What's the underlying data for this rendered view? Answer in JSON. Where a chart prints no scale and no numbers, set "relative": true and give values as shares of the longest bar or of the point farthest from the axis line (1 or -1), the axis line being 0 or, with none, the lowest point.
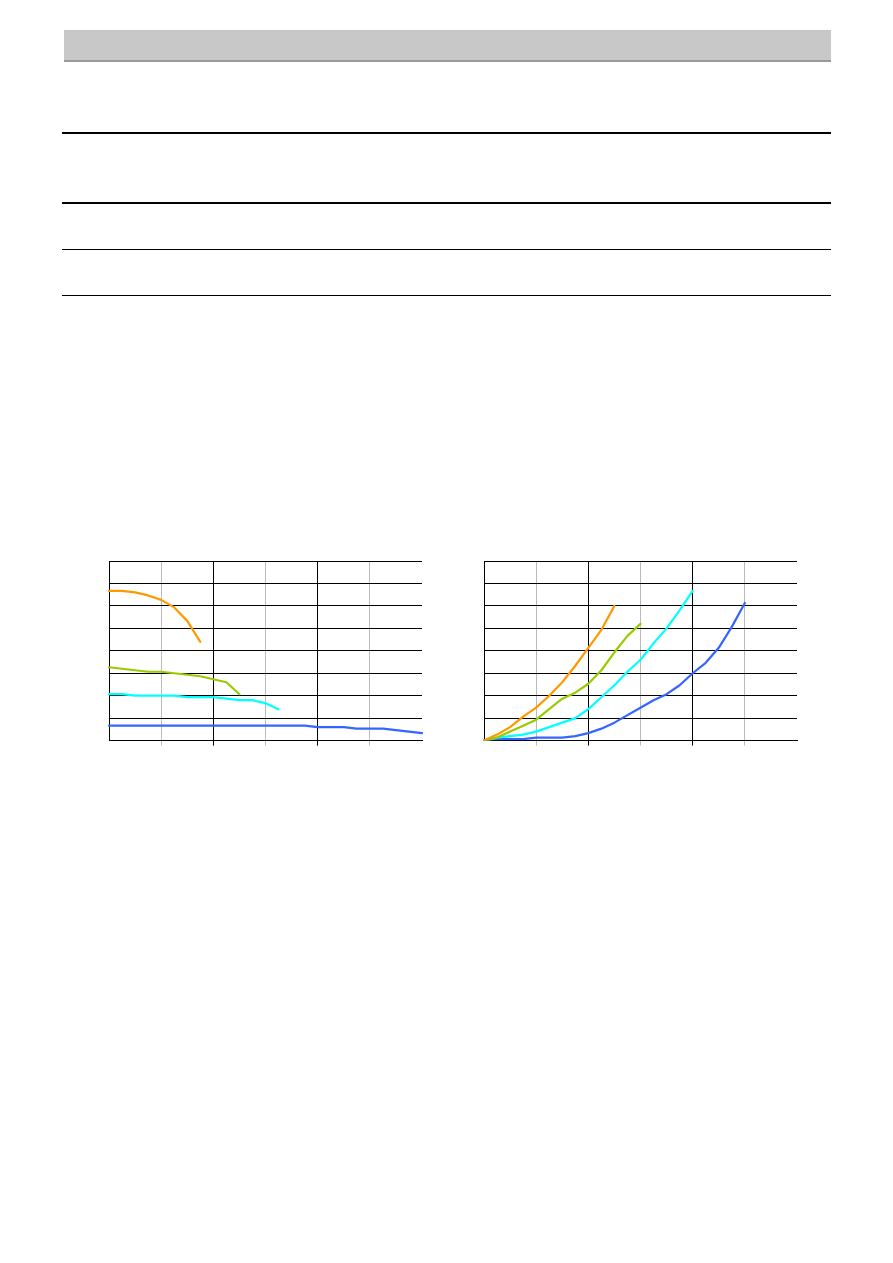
{
  "chart_data": [
    {
      "type": "line",
      "relative": true,
      "grid": true,
      "marker": "none",
      "line_style": "solid",
      "categories": [
        null,
        null,
        null,
        null,
        null,
        null,
        null,
        null,
        null,
        null,
        null,
        null,
        null,
        null,
        null,
        null,
        null,
        null,
        null,
        null,
        null,
        null,
        null,
        null,
        null
      ],
      "series": [
        {
          "color": "#ff9900",
          "values": [
            1,
            1,
            0.99,
            0.97,
            0.94,
            0.89,
            0.8,
            0.66,
            null,
            null,
            null,
            null,
            null,
            null,
            null,
            null,
            null,
            null,
            null,
            null,
            null,
            null,
            null,
            null,
            null
          ]
        },
        {
          "color": "#99cc00",
          "values": [
            0.49,
            0.48,
            0.47,
            0.46,
            0.46,
            0.45,
            0.44,
            0.43,
            0.41,
            0.39,
            0.31,
            null,
            null,
            null,
            null,
            null,
            null,
            null,
            null,
            null,
            null,
            null,
            null,
            null,
            null
          ]
        },
        {
          "color": "#00ffff",
          "values": [
            0.31,
            0.31,
            0.3,
            0.3,
            0.3,
            0.3,
            0.29,
            0.29,
            0.29,
            0.28,
            0.27,
            0.27,
            0.25,
            0.21,
            null,
            null,
            null,
            null,
            null,
            null,
            null,
            null,
            null,
            null,
            null
          ]
        },
        {
          "color": "#3366ff",
          "values": [
            0.1,
            0.1,
            0.1,
            0.1,
            0.1,
            0.1,
            0.1,
            0.1,
            0.1,
            0.1,
            0.1,
            0.1,
            0.1,
            0.1,
            0.1,
            0.1,
            0.09,
            0.09,
            0.09,
            0.08,
            0.08,
            0.08,
            0.07,
            0.06,
            0.05
          ]
        }
      ]
    },
    {
      "type": "line",
      "relative": true,
      "grid": true,
      "marker": "none",
      "line_style": "solid",
      "categories": [
        null,
        null,
        null,
        null,
        null,
        null,
        null,
        null,
        null,
        null,
        null,
        null,
        null,
        null,
        null,
        null,
        null,
        null,
        null,
        null,
        null,
        null,
        null,
        null,
        null
      ],
      "series": [
        {
          "color": "#ff9900",
          "values": [
            0,
            0.04,
            0.09,
            0.16,
            0.22,
            0.3,
            0.39,
            0.5,
            0.62,
            0.74,
            0.9,
            null,
            null,
            null,
            null,
            null,
            null,
            null,
            null,
            null,
            null,
            null,
            null,
            null,
            null
          ]
        },
        {
          "color": "#99cc00",
          "values": [
            0,
            0.02,
            0.06,
            0.1,
            0.14,
            0.21,
            0.28,
            0.32,
            0.38,
            0.47,
            0.59,
            0.7,
            0.78,
            null,
            null,
            null,
            null,
            null,
            null,
            null,
            null,
            null,
            null,
            null,
            null
          ]
        },
        {
          "color": "#00ffff",
          "values": [
            0,
            0.02,
            0.03,
            0.04,
            0.06,
            0.09,
            0.12,
            0.15,
            0.21,
            0.29,
            0.37,
            0.46,
            0.54,
            0.65,
            0.75,
            0.87,
            1,
            null,
            null,
            null,
            null,
            null,
            null,
            null,
            null
          ]
        },
        {
          "color": "#3366ff",
          "values": [
            0,
            0.01,
            0.01,
            0.01,
            0.02,
            0.02,
            0.02,
            0.03,
            0.05,
            0.08,
            0.12,
            0.17,
            0.22,
            0.27,
            0.31,
            0.37,
            0.45,
            0.52,
            0.62,
            0.76,
            0.92,
            null,
            null,
            null,
            null
          ]
        }
      ]
    }
  ]
}
